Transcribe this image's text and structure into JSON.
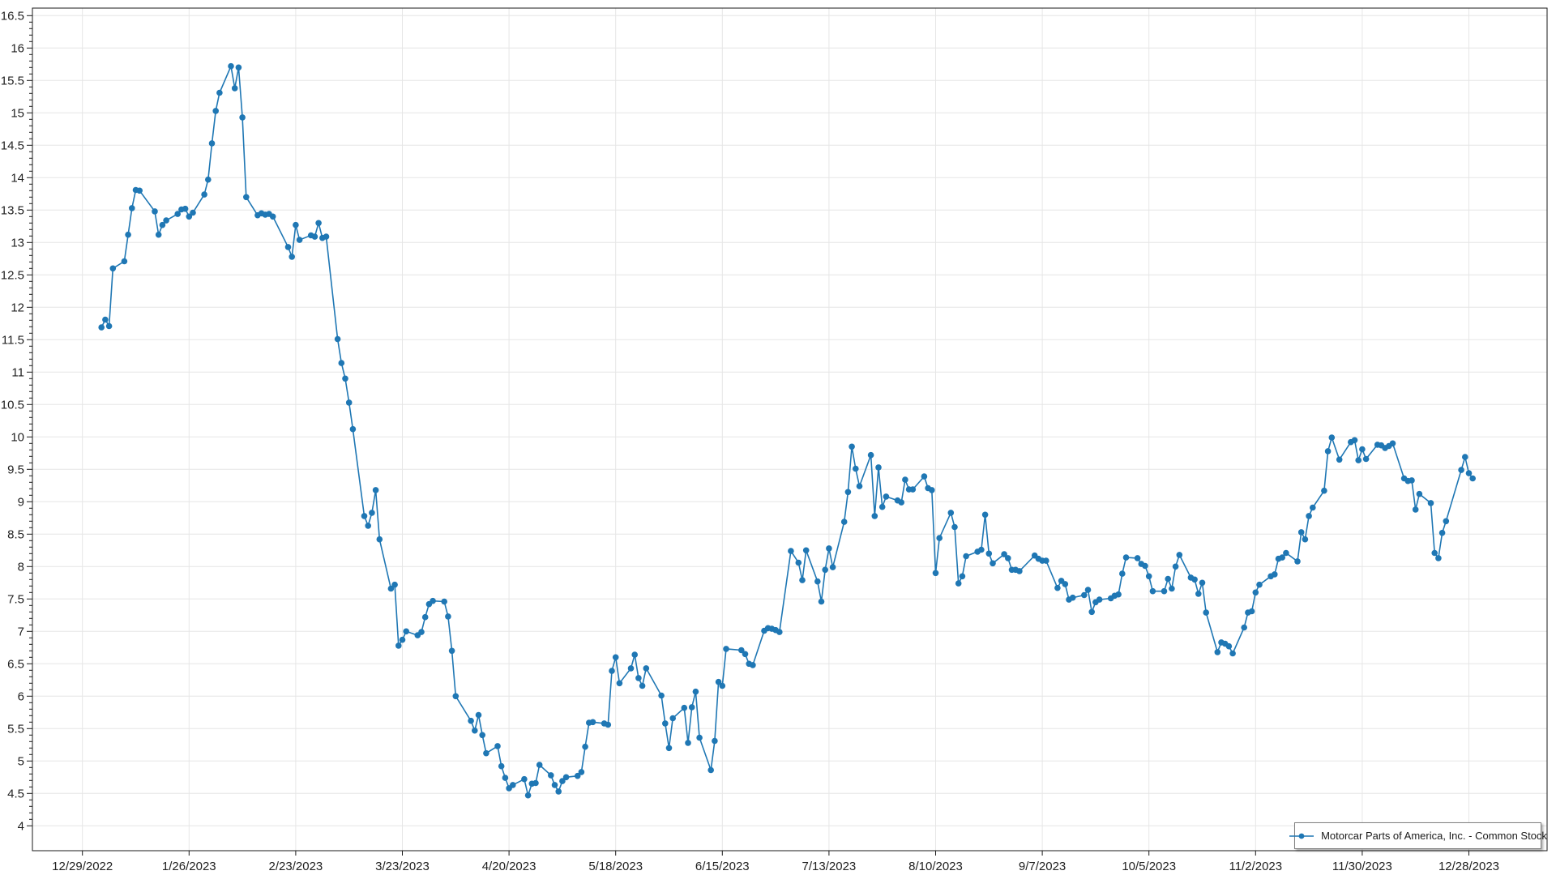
{
  "chart_data": {
    "type": "line",
    "title": "",
    "xlabel": "",
    "ylabel": "",
    "grid": true,
    "background_color": "#ffffff",
    "gridline_color": "#e6e6e6",
    "axis_color": "#1a1a1a",
    "tick_label_color": "#222222",
    "ylim": [
      3.6,
      16.62
    ],
    "xlim": [
      "2022-12-16",
      "2024-01-13"
    ],
    "y_tick_values": [
      4,
      4.5,
      5,
      5.5,
      6,
      6.5,
      7,
      7.5,
      8,
      8.5,
      9,
      9.5,
      10,
      10.5,
      11,
      11.5,
      12,
      12.5,
      13,
      13.5,
      14,
      14.5,
      15,
      15.5,
      16,
      16.5
    ],
    "y_tick_labels": [
      "4",
      "4.5",
      "5",
      "5.5",
      "6",
      "6.5",
      "7",
      "7.5",
      "8",
      "8.5",
      "9",
      "9.5",
      "10",
      "10.5",
      "11",
      "11.5",
      "12",
      "12.5",
      "13",
      "13.5",
      "14",
      "14.5",
      "15",
      "15.5",
      "16",
      "16.5"
    ],
    "x_ticks": [
      {
        "date": "2022-12-29",
        "label": "12/29/2022"
      },
      {
        "date": "2023-01-26",
        "label": "1/26/2023"
      },
      {
        "date": "2023-02-23",
        "label": "2/23/2023"
      },
      {
        "date": "2023-03-23",
        "label": "3/23/2023"
      },
      {
        "date": "2023-04-20",
        "label": "4/20/2023"
      },
      {
        "date": "2023-05-18",
        "label": "5/18/2023"
      },
      {
        "date": "2023-06-15",
        "label": "6/15/2023"
      },
      {
        "date": "2023-07-13",
        "label": "7/13/2023"
      },
      {
        "date": "2023-08-10",
        "label": "8/10/2023"
      },
      {
        "date": "2023-09-07",
        "label": "9/7/2023"
      },
      {
        "date": "2023-10-05",
        "label": "10/5/2023"
      },
      {
        "date": "2023-11-02",
        "label": "11/2/2023"
      },
      {
        "date": "2023-11-30",
        "label": "11/30/2023"
      },
      {
        "date": "2023-12-28",
        "label": "12/28/2023"
      }
    ],
    "legend": {
      "label": "Motorcar Parts of America, Inc. - Common Stock",
      "position": "bottom-right"
    },
    "series": [
      {
        "name": "Motorcar Parts of America, Inc. - Common Stock",
        "color": "#1f77b4",
        "marker": "circle",
        "points": [
          [
            "2023-01-03",
            11.69
          ],
          [
            "2023-01-04",
            11.81
          ],
          [
            "2023-01-05",
            11.71
          ],
          [
            "2023-01-06",
            12.6
          ],
          [
            "2023-01-09",
            12.71
          ],
          [
            "2023-01-10",
            13.12
          ],
          [
            "2023-01-11",
            13.53
          ],
          [
            "2023-01-12",
            13.81
          ],
          [
            "2023-01-13",
            13.8
          ],
          [
            "2023-01-17",
            13.48
          ],
          [
            "2023-01-18",
            13.12
          ],
          [
            "2023-01-19",
            13.27
          ],
          [
            "2023-01-20",
            13.34
          ],
          [
            "2023-01-23",
            13.44
          ],
          [
            "2023-01-24",
            13.51
          ],
          [
            "2023-01-25",
            13.52
          ],
          [
            "2023-01-26",
            13.4
          ],
          [
            "2023-01-27",
            13.46
          ],
          [
            "2023-01-30",
            13.74
          ],
          [
            "2023-01-31",
            13.97
          ],
          [
            "2023-02-01",
            14.53
          ],
          [
            "2023-02-02",
            15.03
          ],
          [
            "2023-02-03",
            15.31
          ],
          [
            "2023-02-06",
            15.72
          ],
          [
            "2023-02-07",
            15.38
          ],
          [
            "2023-02-08",
            15.7
          ],
          [
            "2023-02-09",
            14.93
          ],
          [
            "2023-02-10",
            13.7
          ],
          [
            "2023-02-13",
            13.42
          ],
          [
            "2023-02-14",
            13.45
          ],
          [
            "2023-02-15",
            13.43
          ],
          [
            "2023-02-16",
            13.44
          ],
          [
            "2023-02-17",
            13.4
          ],
          [
            "2023-02-21",
            12.93
          ],
          [
            "2023-02-22",
            12.78
          ],
          [
            "2023-02-23",
            13.27
          ],
          [
            "2023-02-24",
            13.04
          ],
          [
            "2023-02-27",
            13.11
          ],
          [
            "2023-02-28",
            13.09
          ],
          [
            "2023-03-01",
            13.3
          ],
          [
            "2023-03-02",
            13.07
          ],
          [
            "2023-03-03",
            13.09
          ],
          [
            "2023-03-06",
            11.51
          ],
          [
            "2023-03-07",
            11.14
          ],
          [
            "2023-03-08",
            10.9
          ],
          [
            "2023-03-09",
            10.53
          ],
          [
            "2023-03-10",
            10.12
          ],
          [
            "2023-03-13",
            8.78
          ],
          [
            "2023-03-14",
            8.63
          ],
          [
            "2023-03-15",
            8.83
          ],
          [
            "2023-03-16",
            9.18
          ],
          [
            "2023-03-17",
            8.42
          ],
          [
            "2023-03-20",
            7.66
          ],
          [
            "2023-03-21",
            7.72
          ],
          [
            "2023-03-22",
            6.78
          ],
          [
            "2023-03-23",
            6.87
          ],
          [
            "2023-03-24",
            7.0
          ],
          [
            "2023-03-27",
            6.94
          ],
          [
            "2023-03-28",
            6.99
          ],
          [
            "2023-03-29",
            7.22
          ],
          [
            "2023-03-30",
            7.42
          ],
          [
            "2023-03-31",
            7.47
          ],
          [
            "2023-04-03",
            7.46
          ],
          [
            "2023-04-04",
            7.23
          ],
          [
            "2023-04-05",
            6.7
          ],
          [
            "2023-04-06",
            6.0
          ],
          [
            "2023-04-10",
            5.62
          ],
          [
            "2023-04-11",
            5.47
          ],
          [
            "2023-04-12",
            5.71
          ],
          [
            "2023-04-13",
            5.4
          ],
          [
            "2023-04-14",
            5.12
          ],
          [
            "2023-04-17",
            5.23
          ],
          [
            "2023-04-18",
            4.92
          ],
          [
            "2023-04-19",
            4.74
          ],
          [
            "2023-04-20",
            4.58
          ],
          [
            "2023-04-21",
            4.63
          ],
          [
            "2023-04-24",
            4.72
          ],
          [
            "2023-04-25",
            4.47
          ],
          [
            "2023-04-26",
            4.65
          ],
          [
            "2023-04-27",
            4.66
          ],
          [
            "2023-04-28",
            4.94
          ],
          [
            "2023-05-01",
            4.78
          ],
          [
            "2023-05-02",
            4.63
          ],
          [
            "2023-05-03",
            4.53
          ],
          [
            "2023-05-04",
            4.69
          ],
          [
            "2023-05-05",
            4.75
          ],
          [
            "2023-05-08",
            4.77
          ],
          [
            "2023-05-09",
            4.83
          ],
          [
            "2023-05-10",
            5.22
          ],
          [
            "2023-05-11",
            5.59
          ],
          [
            "2023-05-12",
            5.6
          ],
          [
            "2023-05-15",
            5.58
          ],
          [
            "2023-05-16",
            5.56
          ],
          [
            "2023-05-17",
            6.39
          ],
          [
            "2023-05-18",
            6.6
          ],
          [
            "2023-05-19",
            6.2
          ],
          [
            "2023-05-22",
            6.43
          ],
          [
            "2023-05-23",
            6.64
          ],
          [
            "2023-05-24",
            6.28
          ],
          [
            "2023-05-25",
            6.16
          ],
          [
            "2023-05-26",
            6.43
          ],
          [
            "2023-05-30",
            6.01
          ],
          [
            "2023-05-31",
            5.58
          ],
          [
            "2023-06-01",
            5.2
          ],
          [
            "2023-06-02",
            5.66
          ],
          [
            "2023-06-05",
            5.82
          ],
          [
            "2023-06-06",
            5.28
          ],
          [
            "2023-06-07",
            5.83
          ],
          [
            "2023-06-08",
            6.07
          ],
          [
            "2023-06-09",
            5.36
          ],
          [
            "2023-06-12",
            4.86
          ],
          [
            "2023-06-13",
            5.31
          ],
          [
            "2023-06-14",
            6.22
          ],
          [
            "2023-06-15",
            6.16
          ],
          [
            "2023-06-16",
            6.73
          ],
          [
            "2023-06-20",
            6.71
          ],
          [
            "2023-06-21",
            6.65
          ],
          [
            "2023-06-22",
            6.5
          ],
          [
            "2023-06-23",
            6.48
          ],
          [
            "2023-06-26",
            7.01
          ],
          [
            "2023-06-27",
            7.05
          ],
          [
            "2023-06-28",
            7.04
          ],
          [
            "2023-06-29",
            7.02
          ],
          [
            "2023-06-30",
            6.99
          ],
          [
            "2023-07-03",
            8.24
          ],
          [
            "2023-07-05",
            8.06
          ],
          [
            "2023-07-06",
            7.79
          ],
          [
            "2023-07-07",
            8.25
          ],
          [
            "2023-07-10",
            7.77
          ],
          [
            "2023-07-11",
            7.46
          ],
          [
            "2023-07-12",
            7.95
          ],
          [
            "2023-07-13",
            8.28
          ],
          [
            "2023-07-14",
            7.99
          ],
          [
            "2023-07-17",
            8.69
          ],
          [
            "2023-07-18",
            9.15
          ],
          [
            "2023-07-19",
            9.85
          ],
          [
            "2023-07-20",
            9.51
          ],
          [
            "2023-07-21",
            9.24
          ],
          [
            "2023-07-24",
            9.72
          ],
          [
            "2023-07-25",
            8.78
          ],
          [
            "2023-07-26",
            9.53
          ],
          [
            "2023-07-27",
            8.92
          ],
          [
            "2023-07-28",
            9.08
          ],
          [
            "2023-07-31",
            9.02
          ],
          [
            "2023-08-01",
            8.99
          ],
          [
            "2023-08-02",
            9.34
          ],
          [
            "2023-08-03",
            9.19
          ],
          [
            "2023-08-04",
            9.19
          ],
          [
            "2023-08-07",
            9.39
          ],
          [
            "2023-08-08",
            9.21
          ],
          [
            "2023-08-09",
            9.18
          ],
          [
            "2023-08-10",
            7.9
          ],
          [
            "2023-08-11",
            8.44
          ],
          [
            "2023-08-14",
            8.83
          ],
          [
            "2023-08-15",
            8.61
          ],
          [
            "2023-08-16",
            7.74
          ],
          [
            "2023-08-17",
            7.85
          ],
          [
            "2023-08-18",
            8.16
          ],
          [
            "2023-08-21",
            8.23
          ],
          [
            "2023-08-22",
            8.26
          ],
          [
            "2023-08-23",
            8.8
          ],
          [
            "2023-08-24",
            8.2
          ],
          [
            "2023-08-25",
            8.05
          ],
          [
            "2023-08-28",
            8.19
          ],
          [
            "2023-08-29",
            8.13
          ],
          [
            "2023-08-30",
            7.95
          ],
          [
            "2023-08-31",
            7.95
          ],
          [
            "2023-09-01",
            7.93
          ],
          [
            "2023-09-05",
            8.17
          ],
          [
            "2023-09-06",
            8.12
          ],
          [
            "2023-09-07",
            8.09
          ],
          [
            "2023-09-08",
            8.09
          ],
          [
            "2023-09-11",
            7.67
          ],
          [
            "2023-09-12",
            7.78
          ],
          [
            "2023-09-13",
            7.73
          ],
          [
            "2023-09-14",
            7.49
          ],
          [
            "2023-09-15",
            7.52
          ],
          [
            "2023-09-18",
            7.56
          ],
          [
            "2023-09-19",
            7.64
          ],
          [
            "2023-09-20",
            7.3
          ],
          [
            "2023-09-21",
            7.45
          ],
          [
            "2023-09-22",
            7.49
          ],
          [
            "2023-09-25",
            7.51
          ],
          [
            "2023-09-26",
            7.55
          ],
          [
            "2023-09-27",
            7.57
          ],
          [
            "2023-09-28",
            7.89
          ],
          [
            "2023-09-29",
            8.14
          ],
          [
            "2023-10-02",
            8.13
          ],
          [
            "2023-10-03",
            8.04
          ],
          [
            "2023-10-04",
            8.01
          ],
          [
            "2023-10-05",
            7.85
          ],
          [
            "2023-10-06",
            7.62
          ],
          [
            "2023-10-09",
            7.62
          ],
          [
            "2023-10-10",
            7.81
          ],
          [
            "2023-10-11",
            7.66
          ],
          [
            "2023-10-12",
            8.0
          ],
          [
            "2023-10-13",
            8.18
          ],
          [
            "2023-10-16",
            7.83
          ],
          [
            "2023-10-17",
            7.8
          ],
          [
            "2023-10-18",
            7.58
          ],
          [
            "2023-10-19",
            7.75
          ],
          [
            "2023-10-20",
            7.29
          ],
          [
            "2023-10-23",
            6.68
          ],
          [
            "2023-10-24",
            6.83
          ],
          [
            "2023-10-25",
            6.81
          ],
          [
            "2023-10-26",
            6.77
          ],
          [
            "2023-10-27",
            6.66
          ],
          [
            "2023-10-30",
            7.06
          ],
          [
            "2023-10-31",
            7.29
          ],
          [
            "2023-11-01",
            7.31
          ],
          [
            "2023-11-02",
            7.6
          ],
          [
            "2023-11-03",
            7.72
          ],
          [
            "2023-11-06",
            7.85
          ],
          [
            "2023-11-07",
            7.88
          ],
          [
            "2023-11-08",
            8.12
          ],
          [
            "2023-11-09",
            8.14
          ],
          [
            "2023-11-10",
            8.21
          ],
          [
            "2023-11-13",
            8.08
          ],
          [
            "2023-11-14",
            8.53
          ],
          [
            "2023-11-15",
            8.42
          ],
          [
            "2023-11-16",
            8.78
          ],
          [
            "2023-11-17",
            8.91
          ],
          [
            "2023-11-20",
            9.17
          ],
          [
            "2023-11-21",
            9.78
          ],
          [
            "2023-11-22",
            9.99
          ],
          [
            "2023-11-24",
            9.65
          ],
          [
            "2023-11-27",
            9.92
          ],
          [
            "2023-11-28",
            9.95
          ],
          [
            "2023-11-29",
            9.64
          ],
          [
            "2023-11-30",
            9.81
          ],
          [
            "2023-12-01",
            9.66
          ],
          [
            "2023-12-04",
            9.88
          ],
          [
            "2023-12-05",
            9.87
          ],
          [
            "2023-12-06",
            9.83
          ],
          [
            "2023-12-07",
            9.86
          ],
          [
            "2023-12-08",
            9.9
          ],
          [
            "2023-12-11",
            9.36
          ],
          [
            "2023-12-12",
            9.32
          ],
          [
            "2023-12-13",
            9.33
          ],
          [
            "2023-12-14",
            8.88
          ],
          [
            "2023-12-15",
            9.12
          ],
          [
            "2023-12-18",
            8.98
          ],
          [
            "2023-12-19",
            8.21
          ],
          [
            "2023-12-20",
            8.13
          ],
          [
            "2023-12-21",
            8.52
          ],
          [
            "2023-12-22",
            8.7
          ],
          [
            "2023-12-26",
            9.49
          ],
          [
            "2023-12-27",
            9.69
          ],
          [
            "2023-12-28",
            9.44
          ],
          [
            "2023-12-29",
            9.36
          ]
        ]
      }
    ]
  }
}
